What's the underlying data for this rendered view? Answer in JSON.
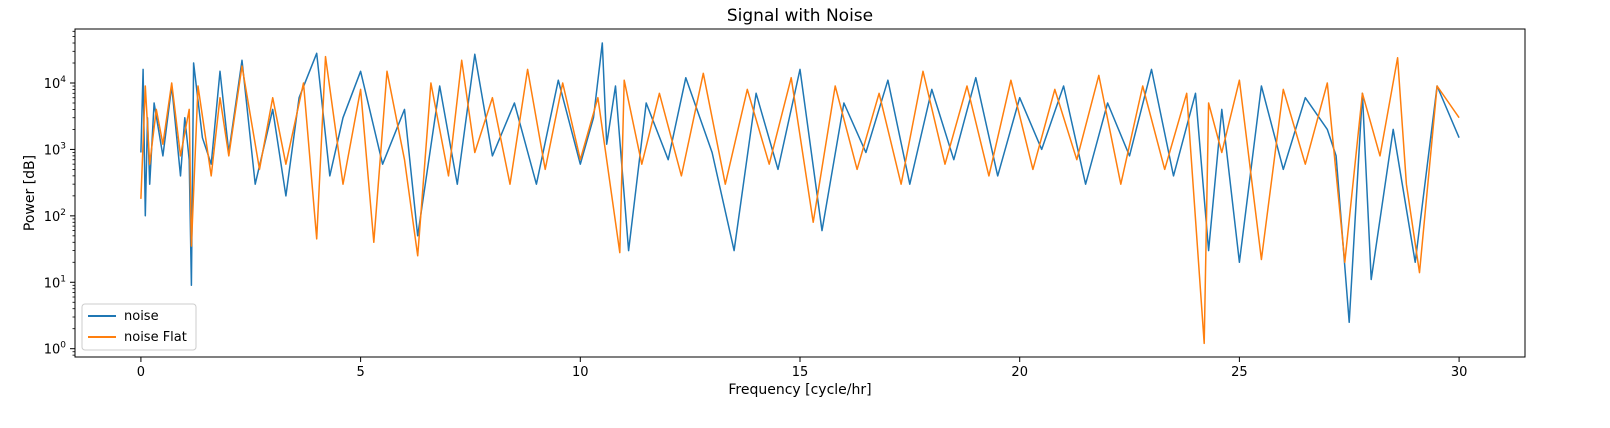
{
  "chart_data": {
    "type": "line",
    "title": "Signal with Noise",
    "xlabel": "Frequency [cycle/hr]",
    "ylabel": "Power [dB]",
    "xlim": [
      -1.5,
      31.5
    ],
    "ylim": [
      0.75,
      65000
    ],
    "yscale": "log",
    "grid": false,
    "legend_position": "lower-left",
    "x_ticks": [
      {
        "value": 0,
        "label": "0"
      },
      {
        "value": 5,
        "label": "5"
      },
      {
        "value": 10,
        "label": "10"
      },
      {
        "value": 15,
        "label": "15"
      },
      {
        "value": 20,
        "label": "20"
      },
      {
        "value": 25,
        "label": "25"
      },
      {
        "value": 30,
        "label": "30"
      }
    ],
    "y_ticks": [
      {
        "value": 1,
        "label": "10",
        "exp": "0"
      },
      {
        "value": 10,
        "label": "10",
        "exp": "1"
      },
      {
        "value": 100,
        "label": "10",
        "exp": "2"
      },
      {
        "value": 1000,
        "label": "10",
        "exp": "3"
      },
      {
        "value": 10000,
        "label": "10",
        "exp": "4"
      }
    ],
    "series": [
      {
        "name": "noise",
        "color": "#1f77b4",
        "x": [
          0.0,
          0.05,
          0.1,
          0.15,
          0.2,
          0.3,
          0.5,
          0.7,
          0.9,
          1.0,
          1.1,
          1.15,
          1.2,
          1.4,
          1.6,
          1.8,
          2.0,
          2.3,
          2.6,
          3.0,
          3.3,
          3.6,
          4.0,
          4.3,
          4.6,
          5.0,
          5.5,
          6.0,
          6.3,
          6.8,
          7.2,
          7.6,
          8.0,
          8.5,
          9.0,
          9.5,
          10.0,
          10.3,
          10.5,
          10.6,
          10.8,
          11.1,
          11.5,
          12.0,
          12.4,
          13.0,
          13.5,
          14.0,
          14.5,
          15.0,
          15.5,
          16.0,
          16.5,
          17.0,
          17.5,
          18.0,
          18.5,
          19.0,
          19.5,
          20.0,
          20.5,
          21.0,
          21.5,
          22.0,
          22.5,
          23.0,
          23.5,
          24.0,
          24.3,
          24.6,
          25.0,
          25.5,
          26.0,
          26.5,
          27.0,
          27.2,
          27.5,
          27.8,
          28.0,
          28.5,
          29.0,
          29.5,
          30.0
        ],
        "y": [
          900,
          16000,
          100,
          3000,
          300,
          5000,
          800,
          9000,
          400,
          3000,
          700,
          9,
          20000,
          1500,
          600,
          15000,
          900,
          22000,
          300,
          4000,
          200,
          6000,
          28000,
          400,
          3000,
          15000,
          600,
          4000,
          50,
          9000,
          300,
          27000,
          800,
          5000,
          300,
          11000,
          600,
          3000,
          40000,
          1200,
          9000,
          30,
          5000,
          700,
          12000,
          900,
          30,
          7000,
          500,
          16000,
          60,
          5000,
          900,
          11000,
          300,
          8000,
          700,
          12000,
          400,
          6000,
          1000,
          9000,
          300,
          5000,
          800,
          16000,
          400,
          7000,
          30,
          4000,
          20,
          9000,
          500,
          6000,
          2000,
          800,
          2.5,
          7000,
          11,
          2000,
          20,
          9000,
          1500
        ]
      },
      {
        "name": "noise Flat",
        "color": "#ff7f0e",
        "x": [
          0.0,
          0.1,
          0.2,
          0.35,
          0.5,
          0.7,
          0.9,
          1.1,
          1.15,
          1.3,
          1.6,
          1.8,
          2.0,
          2.3,
          2.7,
          3.0,
          3.3,
          3.7,
          4.0,
          4.2,
          4.6,
          5.0,
          5.3,
          5.6,
          6.0,
          6.3,
          6.6,
          7.0,
          7.3,
          7.6,
          8.0,
          8.4,
          8.8,
          9.2,
          9.6,
          10.0,
          10.4,
          10.9,
          11.0,
          11.4,
          11.8,
          12.3,
          12.8,
          13.3,
          13.8,
          14.3,
          14.8,
          15.3,
          15.8,
          16.3,
          16.8,
          17.3,
          17.8,
          18.3,
          18.8,
          19.3,
          19.8,
          20.3,
          20.8,
          21.3,
          21.8,
          22.3,
          22.8,
          23.3,
          23.8,
          24.2,
          24.3,
          24.6,
          25.0,
          25.5,
          26.0,
          26.5,
          27.0,
          27.4,
          27.8,
          28.2,
          28.6,
          28.8,
          29.1,
          29.5,
          30.0
        ],
        "y": [
          180,
          9000,
          600,
          4000,
          1200,
          10000,
          800,
          4000,
          35,
          9000,
          400,
          6000,
          800,
          18000,
          500,
          6000,
          600,
          10000,
          45,
          25000,
          300,
          8000,
          40,
          15000,
          700,
          25,
          10000,
          400,
          22000,
          900,
          6000,
          300,
          16000,
          500,
          10000,
          700,
          6000,
          28,
          11000,
          600,
          7000,
          400,
          14000,
          300,
          8000,
          600,
          12000,
          80,
          9000,
          500,
          7000,
          300,
          15000,
          600,
          9000,
          400,
          11000,
          500,
          8000,
          700,
          13000,
          300,
          9000,
          500,
          7000,
          1.2,
          5000,
          900,
          11000,
          22,
          8000,
          600,
          10000,
          20,
          7000,
          800,
          24000,
          300,
          14,
          9000,
          3000
        ]
      }
    ]
  }
}
